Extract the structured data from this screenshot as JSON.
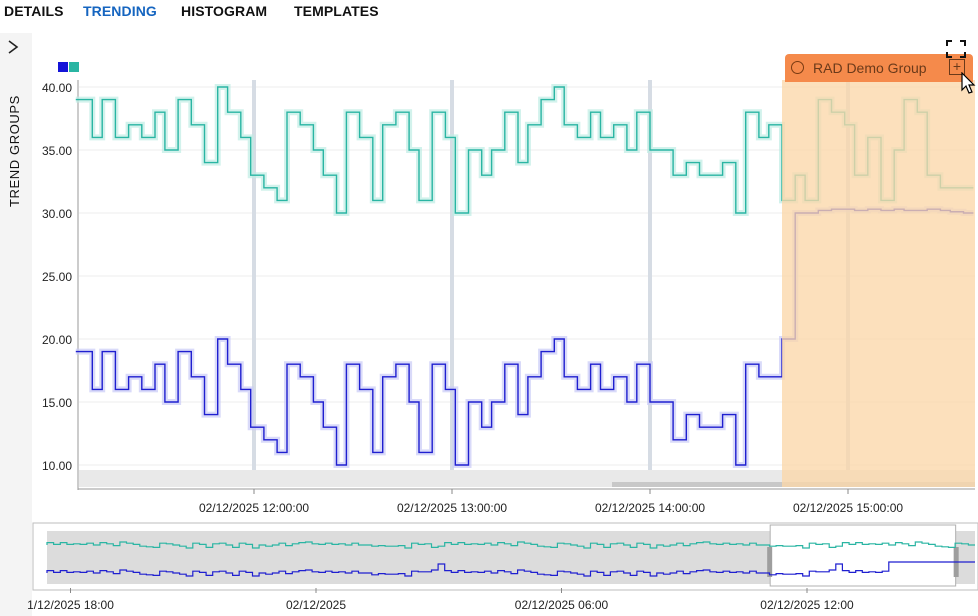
{
  "tabs": [
    {
      "label": "DETAILS",
      "active": false
    },
    {
      "label": "TRENDING",
      "active": true
    },
    {
      "label": "HISTOGRAM",
      "active": false
    },
    {
      "label": "TEMPLATES",
      "active": false
    }
  ],
  "sidebar": {
    "label": "TREND GROUPS",
    "icon": "chevron-right-icon"
  },
  "legend": [
    {
      "color": "#1414d8"
    },
    {
      "color": "#2ab5a3"
    }
  ],
  "colors": {
    "series_teal": "#2ab5a3",
    "series_blue": "#1f1fd0",
    "group_fill": "#fbd7a9",
    "group_header": "#f58a4b",
    "tab_active": "#1565c0"
  },
  "group": {
    "label": "RAD Demo Group",
    "icon": "trend-icon",
    "add_icon": "plus-box-icon"
  },
  "fullscreen_icon": "fullscreen-icon",
  "chart_data": [
    {
      "type": "line",
      "y_ticks": [
        "40.00",
        "35.00",
        "30.00",
        "25.00",
        "20.00",
        "15.00",
        "10.00"
      ],
      "ylim": [
        8,
        41
      ],
      "x_ticks": [
        "02/12/2025 12:00:00",
        "02/12/2025 13:00:00",
        "02/12/2025 14:00:00",
        "02/12/2025 15:00:00"
      ],
      "xlim": [
        "02/12/2025 11:06",
        "02/12/2025 15:38"
      ],
      "grid": true,
      "highlight": {
        "label": "RAD Demo Group",
        "start": "02/12/2025 14:40",
        "end": "02/12/2025 15:38"
      },
      "series": [
        {
          "color": "#2ab5a3",
          "x": [
            "11:06",
            "11:11",
            "11:14",
            "11:18",
            "11:22",
            "11:26",
            "11:30",
            "11:33",
            "11:37",
            "11:41",
            "11:45",
            "11:49",
            "11:52",
            "11:56",
            "11:59",
            "12:03",
            "12:07",
            "12:10",
            "12:14",
            "12:18",
            "12:21",
            "12:25",
            "12:28",
            "12:32",
            "12:36",
            "12:39",
            "12:43",
            "12:47",
            "12:50",
            "12:54",
            "12:58",
            "13:01",
            "13:05",
            "13:09",
            "13:12",
            "13:16",
            "13:20",
            "13:23",
            "13:27",
            "13:31",
            "13:34",
            "13:38",
            "13:42",
            "13:45",
            "13:49",
            "13:53",
            "13:56",
            "14:00",
            "14:04",
            "14:07",
            "14:11",
            "14:15",
            "14:18",
            "14:22",
            "14:26",
            "14:29",
            "14:33",
            "14:36",
            "14:40",
            "14:44",
            "14:47",
            "14:51",
            "14:55",
            "14:59",
            "15:02",
            "15:06",
            "15:10",
            "15:14",
            "15:17",
            "15:21",
            "15:24",
            "15:28",
            "15:31",
            "15:35"
          ],
          "y": [
            39,
            36,
            39,
            36,
            37,
            36,
            38,
            35,
            39,
            37,
            34,
            40,
            38,
            36,
            33,
            32,
            31,
            38,
            37,
            35,
            33,
            30,
            38,
            36,
            31,
            37,
            38,
            35,
            31,
            38,
            36,
            30,
            35,
            33,
            35,
            38,
            34,
            37,
            39,
            40,
            37,
            36,
            38,
            36,
            37,
            35,
            38,
            35,
            35,
            33,
            34,
            33,
            33,
            34,
            30,
            38,
            36,
            37,
            31,
            33,
            31,
            39,
            38,
            37,
            33,
            36,
            31,
            35,
            39,
            38,
            33,
            32,
            32,
            32
          ]
        },
        {
          "color": "#1f1fd0",
          "x": [
            "11:06",
            "11:11",
            "11:14",
            "11:18",
            "11:22",
            "11:26",
            "11:30",
            "11:33",
            "11:37",
            "11:41",
            "11:45",
            "11:49",
            "11:52",
            "11:56",
            "11:59",
            "12:03",
            "12:07",
            "12:10",
            "12:14",
            "12:18",
            "12:21",
            "12:25",
            "12:28",
            "12:32",
            "12:36",
            "12:39",
            "12:43",
            "12:47",
            "12:50",
            "12:54",
            "12:58",
            "13:01",
            "13:05",
            "13:09",
            "13:12",
            "13:16",
            "13:20",
            "13:23",
            "13:27",
            "13:31",
            "13:34",
            "13:38",
            "13:42",
            "13:45",
            "13:49",
            "13:53",
            "13:56",
            "14:00",
            "14:04",
            "14:07",
            "14:11",
            "14:15",
            "14:18",
            "14:22",
            "14:26",
            "14:29",
            "14:33",
            "14:36",
            "14:40",
            "14:44",
            "14:47",
            "14:51",
            "14:55",
            "14:59",
            "15:02",
            "15:06",
            "15:10",
            "15:14",
            "15:17",
            "15:21",
            "15:24",
            "15:28",
            "15:31",
            "15:35"
          ],
          "y": [
            19,
            16,
            19,
            16,
            17,
            16,
            18,
            15,
            19,
            17,
            14,
            20,
            18,
            16,
            13,
            12,
            11,
            18,
            17,
            15,
            13,
            10,
            18,
            16,
            11,
            17,
            18,
            15,
            11,
            18,
            16,
            10,
            15,
            13,
            15,
            18,
            14,
            17,
            19,
            20,
            17,
            16,
            18,
            16,
            17,
            15,
            18,
            15,
            15,
            12,
            14,
            13,
            13,
            14,
            10,
            18,
            17,
            17,
            20,
            30,
            30,
            30.2,
            30.3,
            30.3,
            30.2,
            30.3,
            30.2,
            30.3,
            30.2,
            30.2,
            30.3,
            30.2,
            30.1,
            30
          ]
        }
      ]
    },
    {
      "type": "line",
      "x_ticks": [
        "1/12/2025 18:00",
        "02/12/2025",
        "02/12/2025 06:00",
        "02/12/2025 12:00"
      ],
      "xlim": [
        "01/12/2025 17:10",
        "02/12/2025 17:00"
      ],
      "viewport": {
        "start": "02/12/2025 11:06",
        "end": "02/12/2025 15:38"
      }
    }
  ]
}
